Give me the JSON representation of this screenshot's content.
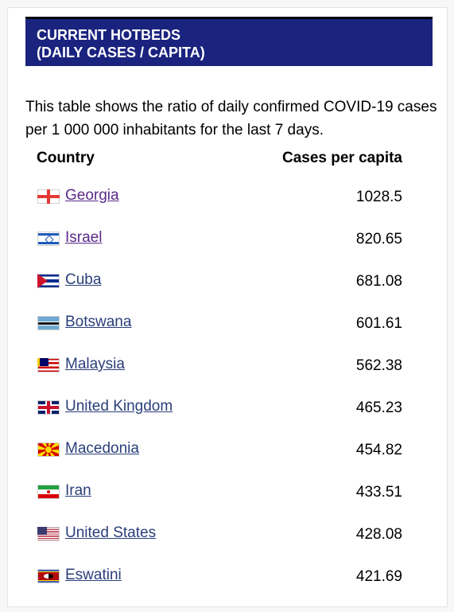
{
  "header": {
    "line1": "CURRENT HOTBEDS",
    "line2": "(DAILY CASES / CAPITA)"
  },
  "description": "This table shows the ratio of daily confirmed COVID-19 cases per 1 000 000 inhabitants for the last 7 days.",
  "table": {
    "columns": [
      "Country",
      "Cases per capita"
    ],
    "rows": [
      {
        "country": "Georgia",
        "value": "1028.5",
        "flag": "georgia-flag-icon",
        "visited": true
      },
      {
        "country": "Israel",
        "value": "820.65",
        "flag": "israel-flag-icon",
        "visited": true
      },
      {
        "country": "Cuba",
        "value": "681.08",
        "flag": "cuba-flag-icon",
        "visited": false
      },
      {
        "country": "Botswana",
        "value": "601.61",
        "flag": "botswana-flag-icon",
        "visited": false
      },
      {
        "country": "Malaysia",
        "value": "562.38",
        "flag": "malaysia-flag-icon",
        "visited": false
      },
      {
        "country": "United Kingdom",
        "value": "465.23",
        "flag": "united-kingdom-flag-icon",
        "visited": false
      },
      {
        "country": "Macedonia",
        "value": "454.82",
        "flag": "macedonia-flag-icon",
        "visited": false
      },
      {
        "country": "Iran",
        "value": "433.51",
        "flag": "iran-flag-icon",
        "visited": false
      },
      {
        "country": "United States",
        "value": "428.08",
        "flag": "united-states-flag-icon",
        "visited": false
      },
      {
        "country": "Eswatini",
        "value": "421.69",
        "flag": "eswatini-flag-icon",
        "visited": false
      }
    ]
  },
  "colors": {
    "header_bg": "#1a237e",
    "link": "#2a3f7a",
    "visited_link": "#5b2a8a"
  }
}
